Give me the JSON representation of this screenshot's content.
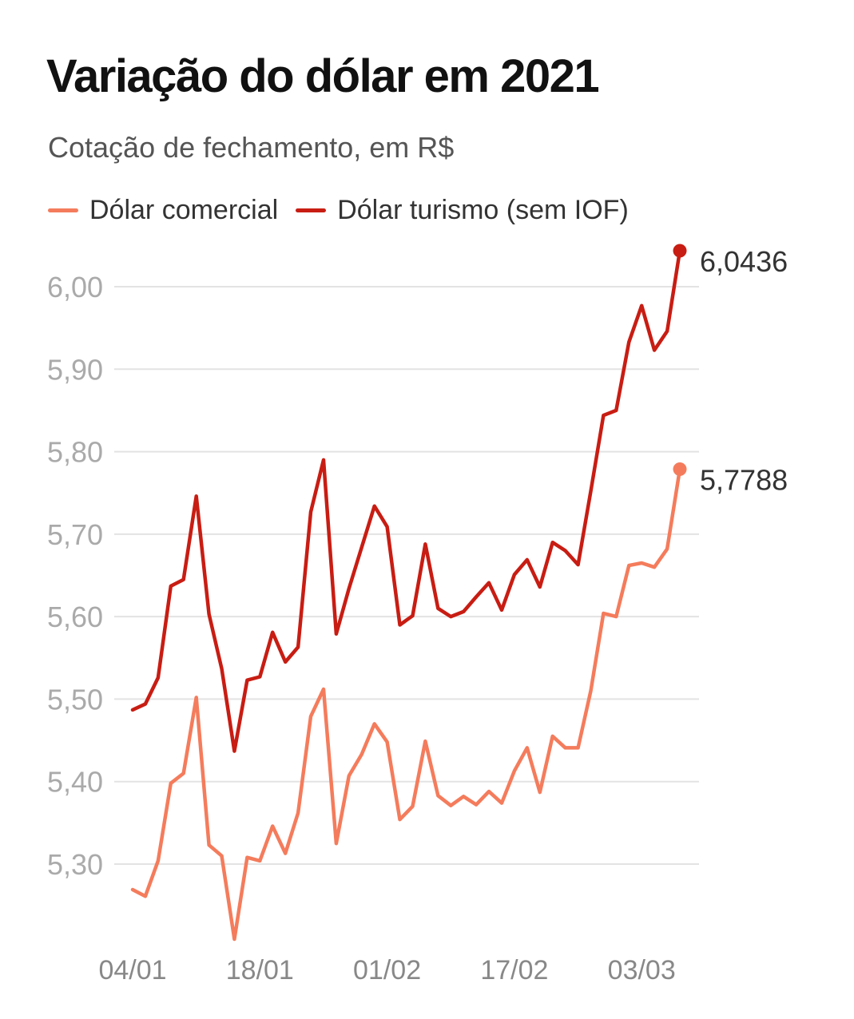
{
  "chart_data": {
    "type": "line",
    "title": "Variação do dólar em 2021",
    "subtitle": "Cotação de fechamento, em R$",
    "xlabel": "",
    "ylabel": "",
    "ylim": [
      5.2,
      6.05
    ],
    "yticks": [
      5.3,
      5.4,
      5.5,
      5.6,
      5.7,
      5.8,
      5.9,
      6.0
    ],
    "ytick_labels": [
      "5,30",
      "5,40",
      "5,50",
      "5,60",
      "5,70",
      "5,80",
      "5,90",
      "6,00"
    ],
    "xtick_labels": [
      {
        "index": 0,
        "label": "04/01"
      },
      {
        "index": 10,
        "label": "18/01"
      },
      {
        "index": 20,
        "label": "01/02"
      },
      {
        "index": 30,
        "label": "17/02"
      },
      {
        "index": 40,
        "label": "03/03"
      }
    ],
    "grid": true,
    "legend": "top-left",
    "series": [
      {
        "name": "Dólar comercial",
        "color": "#f47c5c",
        "end_label": "5,7788",
        "values": [
          5.269,
          5.261,
          5.304,
          5.398,
          5.41,
          5.502,
          5.323,
          5.31,
          5.209,
          5.308,
          5.304,
          5.346,
          5.313,
          5.362,
          5.479,
          5.512,
          5.325,
          5.407,
          5.433,
          5.47,
          5.448,
          5.354,
          5.37,
          5.449,
          5.383,
          5.371,
          5.382,
          5.372,
          5.388,
          5.374,
          5.413,
          5.441,
          5.387,
          5.455,
          5.441,
          5.441,
          5.51,
          5.604,
          5.6,
          5.662,
          5.665,
          5.66,
          5.682,
          5.7788
        ]
      },
      {
        "name": "Dólar turismo (sem IOF)",
        "color": "#c81d13",
        "end_label": "6,0436",
        "values": [
          5.487,
          5.494,
          5.526,
          5.637,
          5.645,
          5.746,
          5.603,
          5.537,
          5.437,
          5.523,
          5.527,
          5.581,
          5.545,
          5.563,
          5.727,
          5.79,
          5.579,
          5.634,
          5.684,
          5.734,
          5.709,
          5.59,
          5.601,
          5.688,
          5.61,
          5.6,
          5.606,
          5.624,
          5.641,
          5.608,
          5.651,
          5.669,
          5.636,
          5.69,
          5.68,
          5.663,
          5.752,
          5.844,
          5.85,
          5.933,
          5.977,
          5.923,
          5.946,
          6.0436
        ]
      }
    ]
  }
}
